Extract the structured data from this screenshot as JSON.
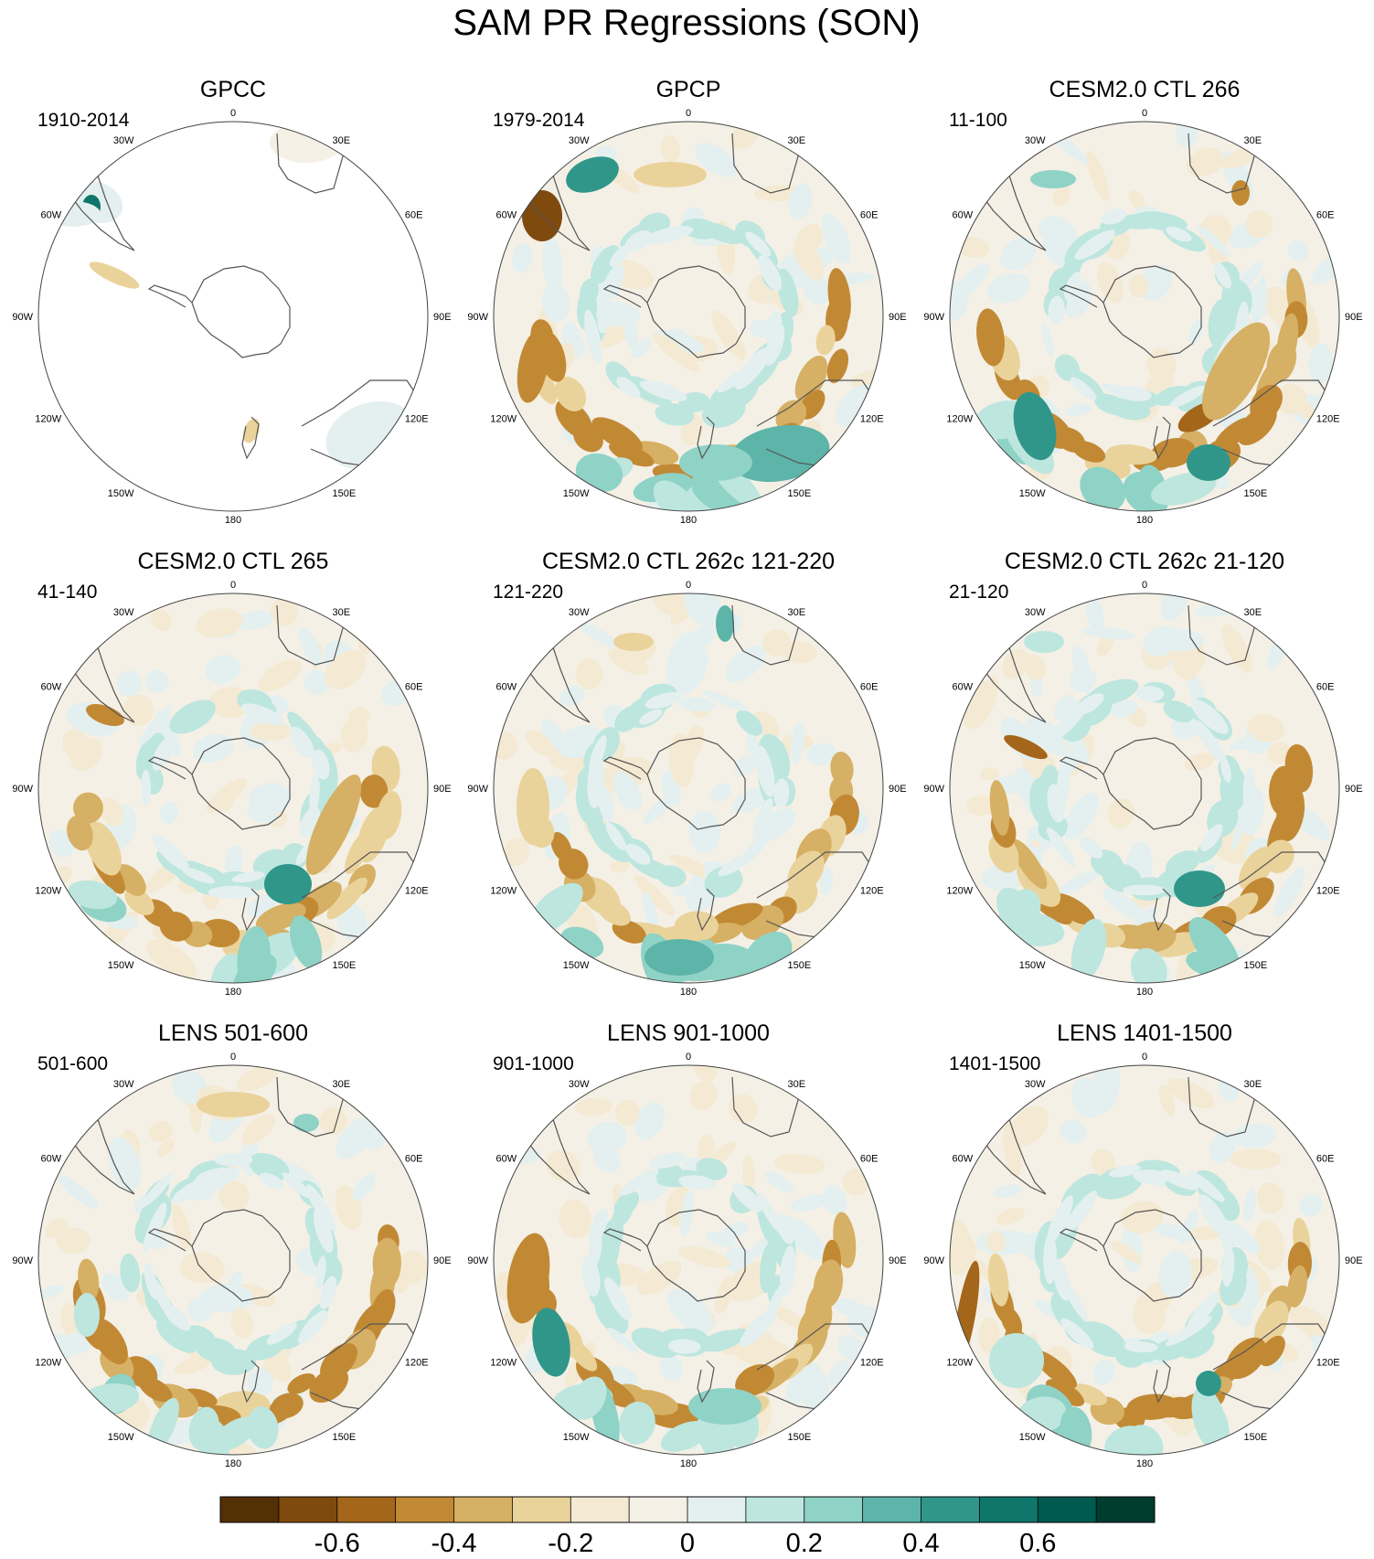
{
  "figure": {
    "title": "SAM PR Regressions (SON)"
  },
  "chart_data": {
    "type": "heatmap",
    "projection": "south polar stereographic",
    "longitude_labels": [
      "0",
      "30E",
      "60E",
      "90E",
      "120E",
      "150E",
      "180",
      "150W",
      "120W",
      "90W",
      "60W",
      "30W"
    ],
    "panels": [
      {
        "title": "GPCC",
        "period": "1910-2014",
        "pattern": "land-only"
      },
      {
        "title": "GPCP",
        "period": "1979-2014",
        "pattern": "obs"
      },
      {
        "title": "CESM2.0 CTL 266",
        "period": "11-100",
        "pattern": "model"
      },
      {
        "title": "CESM2.0 CTL 265",
        "period": "41-140",
        "pattern": "model"
      },
      {
        "title": "CESM2.0 CTL 262c 121-220",
        "period": "121-220",
        "pattern": "model"
      },
      {
        "title": "CESM2.0 CTL 262c 21-120",
        "period": "21-120",
        "pattern": "model"
      },
      {
        "title": "LENS 501-600",
        "period": "501-600",
        "pattern": "model"
      },
      {
        "title": "LENS 901-1000",
        "period": "901-1000",
        "pattern": "model"
      },
      {
        "title": "LENS 1401-1500",
        "period": "1401-1500",
        "pattern": "model"
      }
    ],
    "colorbar": {
      "colors": [
        "#543005",
        "#7f4a0d",
        "#a4661a",
        "#c28935",
        "#d6b064",
        "#ead39b",
        "#f4ead3",
        "#f4f0e6",
        "#e4f0ef",
        "#bde6df",
        "#8fd2c6",
        "#5db4a8",
        "#31968a",
        "#0f766b",
        "#015a4f",
        "#003c30"
      ],
      "tick_labels": [
        "-0.6",
        "-0.4",
        "-0.2",
        "0",
        "0.2",
        "0.4",
        "0.6"
      ],
      "tick_values": [
        -0.6,
        -0.4,
        -0.2,
        0,
        0.2,
        0.4,
        0.6
      ],
      "range": [
        -0.8,
        0.8
      ]
    }
  }
}
